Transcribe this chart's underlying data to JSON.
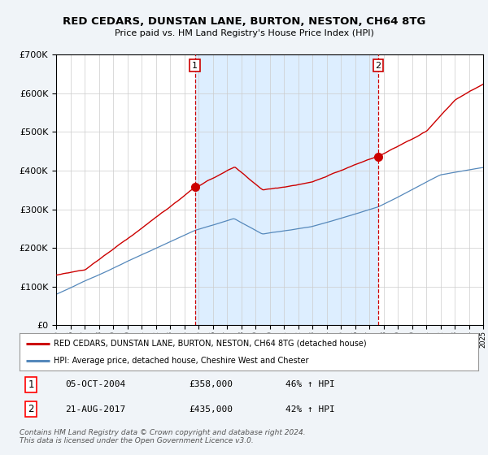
{
  "title": "RED CEDARS, DUNSTAN LANE, BURTON, NESTON, CH64 8TG",
  "subtitle": "Price paid vs. HM Land Registry's House Price Index (HPI)",
  "red_line_color": "#cc0000",
  "blue_line_color": "#5588bb",
  "sale1_x": 2004.75,
  "sale1_y": 358000,
  "sale2_x": 2017.63,
  "sale2_y": 435000,
  "sale1_label": "1",
  "sale2_label": "2",
  "sale1_date": "05-OCT-2004",
  "sale1_price": "£358,000",
  "sale1_hpi": "46% ↑ HPI",
  "sale2_date": "21-AUG-2017",
  "sale2_price": "£435,000",
  "sale2_hpi": "42% ↑ HPI",
  "legend1": "RED CEDARS, DUNSTAN LANE, BURTON, NESTON, CH64 8TG (detached house)",
  "legend2": "HPI: Average price, detached house, Cheshire West and Chester",
  "footer": "Contains HM Land Registry data © Crown copyright and database right 2024.\nThis data is licensed under the Open Government Licence v3.0.",
  "ylim": [
    0,
    700000
  ],
  "xlim": [
    1995,
    2025
  ],
  "shade_color": "#ddeeff",
  "background_color": "#f0f4f8",
  "plot_bg_color": "#ffffff"
}
